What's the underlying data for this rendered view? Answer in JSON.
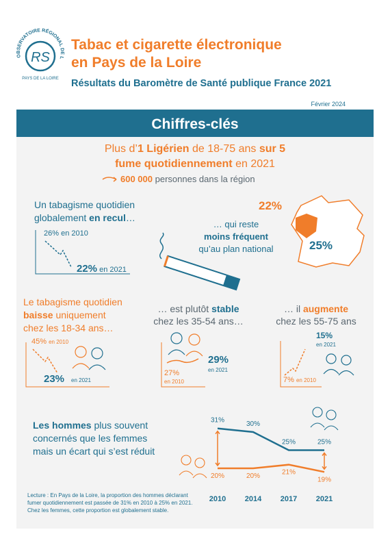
{
  "header": {
    "logo_arc": "OBSERVATOIRE RÉGIONAL DE LA SANTÉ",
    "logo_letters": "RS",
    "logo_region": "PAYS DE LA LOIRE",
    "title_line1": "Tabac et cigarette électronique",
    "title_line2": "en Pays de la Loire",
    "subtitle": "Résultats du Baromètre de Santé publique France 2021",
    "date": "Février 2024",
    "banner": "Chiffres-clés"
  },
  "headline": {
    "l1a": "Plus d’",
    "l1b": "1 Ligérien",
    "l1c": " de 18-75 ans ",
    "l1d": "sur 5",
    "l2a": "fume quotidiennement",
    "l2b": " en 2021",
    "l3a": "600 000",
    "l3b": " personnes dans la région"
  },
  "recul": {
    "t1": "Un tabagisme quotidien",
    "t2a": "globalement ",
    "t2b": "en recul",
    "t2c": "…",
    "start": "26% en 2010",
    "end_value": "22%",
    "end_label": " en 2021"
  },
  "national": {
    "region_value": "22%",
    "france_value": "25%",
    "t1": "… qui reste",
    "t2": "moins fréquent",
    "t3": "qu’au plan national"
  },
  "age_18_34": {
    "t1": "Le tabagisme quotidien",
    "t2a": "baisse",
    "t2b": " uniquement",
    "t3": "chez les 18-34 ans…",
    "start_value": "45%",
    "start_label": "en 2010",
    "end_value": "23%",
    "end_label": "en 2021"
  },
  "age_35_54": {
    "t1a": "… est plutôt ",
    "t1b": "stable",
    "t2": "chez les 35-54 ans…",
    "start_value": "27%",
    "start_label": "en 2010",
    "end_value": "29%",
    "end_label": "en 2021"
  },
  "age_55_75": {
    "t1a": "… il ",
    "t1b": "augmente",
    "t2": "chez les 55-75 ans",
    "end_value": "15%",
    "end_label": "en 2021",
    "start_value": "7%",
    "start_label": "en 2010"
  },
  "gender": {
    "t1a": "Les hommes",
    "t1b": " plus souvent",
    "t2": "concernés que les femmes",
    "t3": "mais un écart qui s’est réduit"
  },
  "chart_data": {
    "type": "line",
    "categories": [
      "2010",
      "2014",
      "2017",
      "2021"
    ],
    "series": [
      {
        "name": "Hommes",
        "color": "#1f6f8f",
        "values": [
          31,
          30,
          25,
          25
        ],
        "value_labels": [
          "31%",
          "30%",
          "25%",
          "25%"
        ]
      },
      {
        "name": "Femmes",
        "color": "#f07d2a",
        "values": [
          20,
          20,
          21,
          19
        ],
        "value_labels": [
          "20%",
          "20%",
          "21%",
          "19%"
        ]
      }
    ]
  },
  "footnote": {
    "l1": "Lecture : En Pays de la Loire, la proportion des hommes déclarant",
    "l2": "fumer quotidiennement est passée de 31% en 2010 à 25% en 2021.",
    "l3": "Chez les femmes, cette proportion est globalement stable."
  }
}
